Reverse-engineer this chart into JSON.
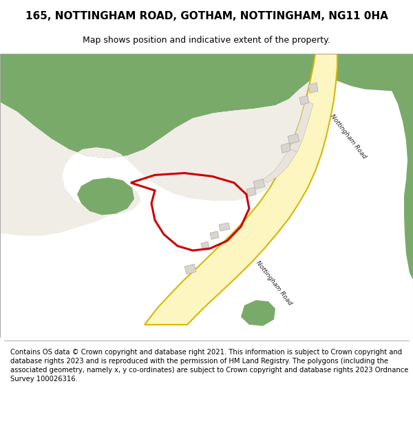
{
  "title": "165, NOTTINGHAM ROAD, GOTHAM, NOTTINGHAM, NG11 0HA",
  "subtitle": "Map shows position and indicative extent of the property.",
  "footer": "Contains OS data © Crown copyright and database right 2021. This information is subject to Crown copyright and database rights 2023 and is reproduced with the permission of HM Land Registry. The polygons (including the associated geometry, namely x, y co-ordinates) are subject to Crown copyright and database rights 2023 Ordnance Survey 100026316.",
  "background_color": "#ffffff",
  "map_background": "#f0ede6",
  "green_color": "#7aaa6a",
  "road_fill": "#fdf6c0",
  "road_border": "#d4b800",
  "road_label": "Nottingham Road",
  "plot_color": "#cc0000",
  "building_color": "#d8d4ce",
  "building_border": "#b0ada8",
  "title_fontsize": 11,
  "subtitle_fontsize": 9,
  "footer_fontsize": 7.2
}
